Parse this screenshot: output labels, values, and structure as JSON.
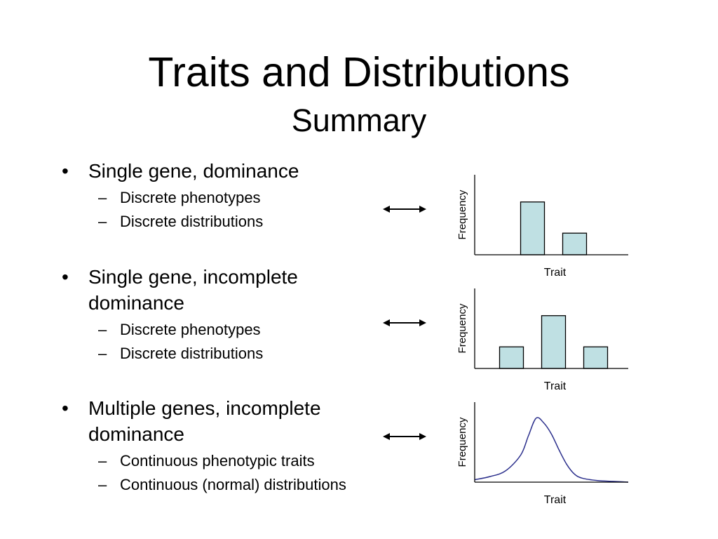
{
  "slide": {
    "title": "Traits and Distributions",
    "subtitle": "Summary"
  },
  "bullets": [
    {
      "lines": [
        "Single gene, dominance"
      ],
      "subitems": [
        "Discrete phenotypes",
        "Discrete distributions"
      ]
    },
    {
      "lines": [
        "Single gene, incomplete",
        "dominance"
      ],
      "subitems": [
        "Discrete phenotypes",
        "Discrete distributions"
      ]
    },
    {
      "lines": [
        "Multiple genes, incomplete",
        "dominance"
      ],
      "subitems": [
        "Continuous phenotypic traits",
        "Continuous (normal) distributions"
      ]
    }
  ],
  "symbols": {
    "bullet": "•",
    "dash": "–"
  },
  "colors": {
    "bar_fill": "#bfe0e3",
    "curve": "#2b2f8c",
    "axis": "#000000"
  },
  "chart_data": [
    {
      "type": "bar",
      "xlabel": "Trait",
      "ylabel": "Frequency",
      "categories": [
        "",
        ""
      ],
      "values": [
        0.66,
        0.27
      ],
      "ylim": [
        0,
        1
      ],
      "grid": false
    },
    {
      "type": "bar",
      "xlabel": "Trait",
      "ylabel": "Frequency",
      "categories": [
        "",
        "",
        ""
      ],
      "values": [
        0.27,
        0.66,
        0.27
      ],
      "ylim": [
        0,
        1
      ],
      "grid": false
    },
    {
      "type": "line",
      "xlabel": "Trait",
      "ylabel": "Frequency",
      "x": [
        0,
        0.1,
        0.2,
        0.3,
        0.35,
        0.4,
        0.45,
        0.5,
        0.55,
        0.6,
        0.65,
        0.7,
        0.8,
        0.9,
        1
      ],
      "y": [
        0.03,
        0.07,
        0.14,
        0.34,
        0.58,
        0.8,
        0.74,
        0.6,
        0.4,
        0.22,
        0.1,
        0.05,
        0.02,
        0.01,
        0
      ],
      "ylim": [
        0,
        1
      ],
      "grid": false
    }
  ]
}
